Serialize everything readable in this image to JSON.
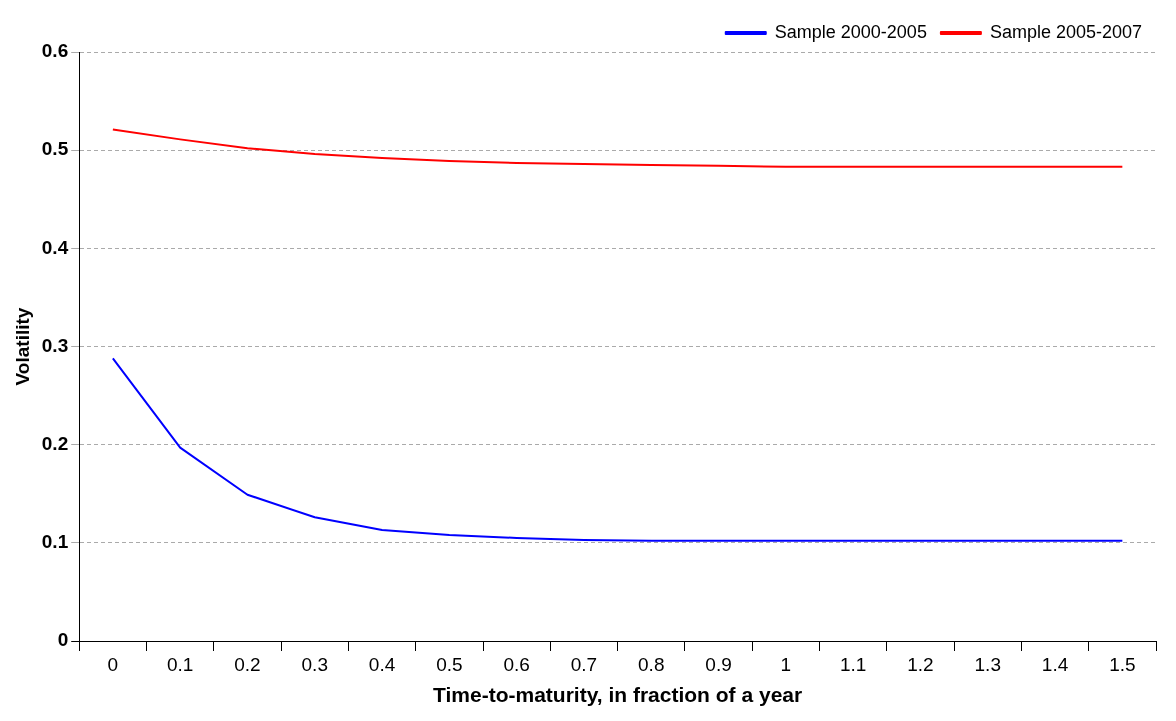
{
  "chart_data": {
    "type": "line",
    "xlabel": "Time-to-maturity, in fraction of a year",
    "ylabel": "Volatility",
    "categories": [
      "0",
      "0.1",
      "0.2",
      "0.3",
      "0.4",
      "0.5",
      "0.6",
      "0.7",
      "0.8",
      "0.9",
      "1",
      "1.1",
      "1.2",
      "1.3",
      "1.4",
      "1.5"
    ],
    "series": [
      {
        "name": "Sample 2000-2005",
        "color": "#0000ff",
        "values": [
          0.288,
          0.197,
          0.149,
          0.126,
          0.113,
          0.108,
          0.105,
          0.103,
          0.102,
          0.102,
          0.102,
          0.102,
          0.102,
          0.102,
          0.102,
          0.102
        ]
      },
      {
        "name": "Sample 2005-2007",
        "color": "#ff0000",
        "values": [
          0.521,
          0.511,
          0.502,
          0.496,
          0.492,
          0.489,
          0.487,
          0.486,
          0.485,
          0.484,
          0.483,
          0.483,
          0.483,
          0.483,
          0.483,
          0.483
        ]
      }
    ],
    "ylim": [
      0,
      0.6
    ],
    "yticks": [
      0,
      0.1,
      0.2,
      0.3,
      0.4,
      0.5,
      0.6
    ],
    "grid": "y",
    "legend": "top right",
    "marker": "none",
    "line_style": "solid"
  }
}
